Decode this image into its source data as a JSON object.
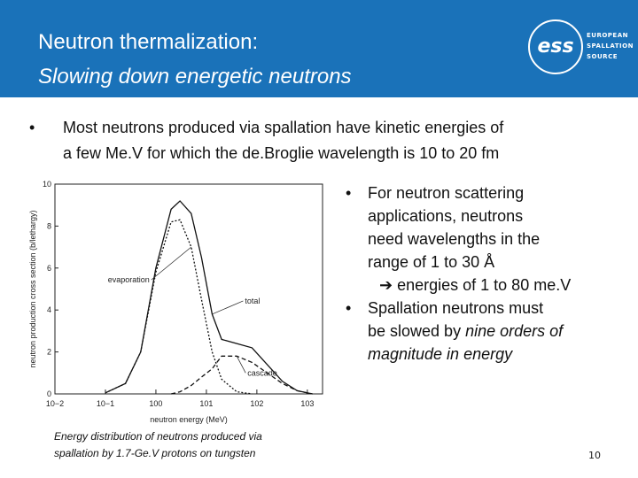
{
  "header": {
    "title_line1": "Neutron thermalization:",
    "title_line2": "Slowing down energetic neutrons",
    "logo_mark": "ess",
    "logo_text": [
      "EUROPEAN",
      "SPALLATION",
      "SOURCE"
    ]
  },
  "bullet_top": [
    "Most neutrons produced via spallation have kinetic energies of",
    "a few Me.V for which the de.Broglie wavelength is 10 to 20 fm"
  ],
  "bullets_right": [
    {
      "lines": [
        [
          {
            "t": "For neutron scattering"
          }
        ],
        [
          {
            "t": "applications, neutrons"
          }
        ],
        [
          {
            "t": "need wavelengths in the"
          }
        ],
        [
          {
            "t": "range of 1 to 30 Å"
          }
        ],
        [
          {
            "t": "energies of 1 to 80 me.V",
            "arrow": true
          }
        ]
      ]
    },
    {
      "lines": [
        [
          {
            "t": "Spallation neutrons must"
          }
        ],
        [
          {
            "t": "be slowed by "
          },
          {
            "t": "nine orders of",
            "italic": true
          }
        ],
        [
          {
            "t": "magnitude in energy",
            "italic": true
          }
        ]
      ]
    }
  ],
  "caption": [
    "Energy distribution of neutrons produced via",
    "spallation by 1.7-Ge.V protons on tungsten"
  ],
  "page_number": "10",
  "chart_data": {
    "type": "line",
    "x_label": "neutron energy (MeV)",
    "y_label": "neutron production cross section (b/lethargy)",
    "xlog": true,
    "xlim": [
      0.01,
      2000
    ],
    "ylim": [
      0,
      10
    ],
    "xticks": [
      {
        "value": 0.01,
        "label": "10−2"
      },
      {
        "value": 0.1,
        "label": "10−1"
      },
      {
        "value": 1,
        "label": "100"
      },
      {
        "value": 10,
        "label": "101"
      },
      {
        "value": 100,
        "label": "102"
      },
      {
        "value": 1000,
        "label": "103"
      }
    ],
    "yticks": [
      0,
      2,
      4,
      6,
      8,
      10
    ],
    "x": [
      0.1,
      0.25,
      0.5,
      1,
      2,
      3,
      5,
      8,
      13,
      20,
      40,
      80,
      160,
      320,
      630,
      1260
    ],
    "series": [
      {
        "name": "total",
        "color": "#111111",
        "dash": "solid",
        "values": [
          0.05,
          0.5,
          2,
          6,
          8.8,
          9.2,
          8.6,
          6.5,
          3.8,
          2.6,
          2.4,
          2.2,
          1.4,
          0.6,
          0.15,
          0
        ]
      },
      {
        "name": "evaporation",
        "color": "#111111",
        "dash": "dotted",
        "values": [
          0.05,
          0.5,
          2,
          5.8,
          8.2,
          8.3,
          7,
          4.5,
          2,
          0.7,
          0.1,
          0,
          null,
          null,
          null,
          null
        ]
      },
      {
        "name": "cascade",
        "color": "#111111",
        "dash": "dashed",
        "values": [
          null,
          null,
          null,
          null,
          0,
          0.1,
          0.4,
          0.8,
          1.2,
          1.8,
          1.8,
          1.5,
          1,
          0.5,
          0.15,
          0
        ]
      }
    ]
  }
}
